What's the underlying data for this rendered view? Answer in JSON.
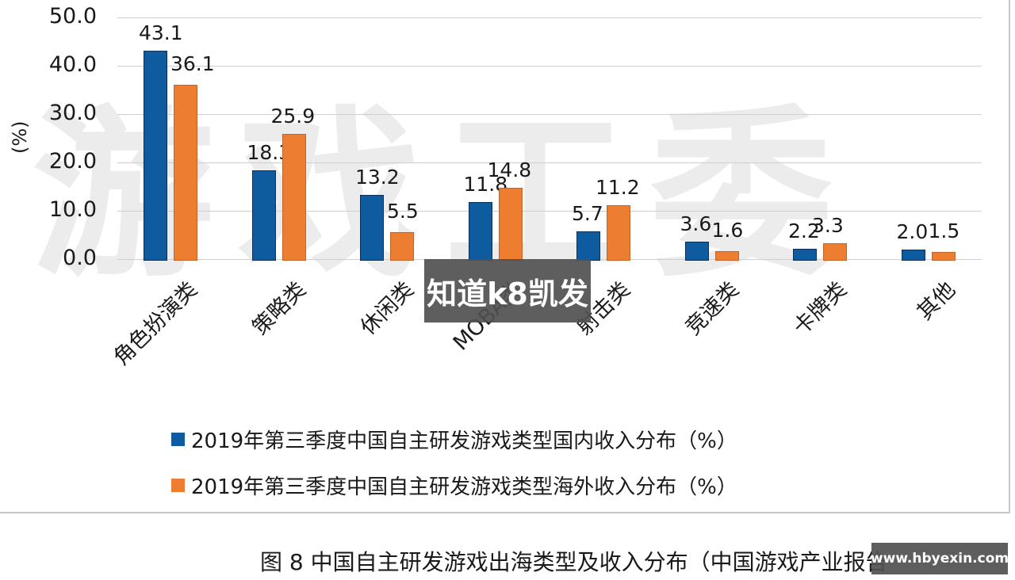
{
  "chart_data": {
    "type": "bar",
    "title": "",
    "xlabel": "",
    "ylabel": "(%)",
    "ylim": [
      0,
      50
    ],
    "yticks": [
      "0.0",
      "10.0",
      "20.0",
      "30.0",
      "40.0",
      "50.0"
    ],
    "grid": true,
    "legend_position": "bottom",
    "categories": [
      "角色扮演类",
      "策略类",
      "休闲类",
      "MOBA类",
      "射击类",
      "竞速类",
      "卡牌类",
      "其他"
    ],
    "series": [
      {
        "name": "2019年第三季度中国自主研发游戏类型国内收入分布（%）",
        "color": "#0f5ba0",
        "values": [
          43.1,
          18.3,
          13.2,
          11.8,
          5.7,
          3.6,
          2.2,
          2.0
        ],
        "labels": [
          "43.1",
          "18.3",
          "13.2",
          "11.8",
          "5.7",
          "3.6",
          "2.2",
          "2.0"
        ]
      },
      {
        "name": "2019年第三季度中国自主研发游戏类型海外收入分布（%）",
        "color": "#ed7d31",
        "values": [
          36.1,
          25.9,
          5.5,
          14.8,
          11.2,
          1.6,
          3.3,
          1.5
        ],
        "labels": [
          "36.1",
          "25.9",
          "5.5",
          "14.8",
          "11.2",
          "1.6",
          "3.3",
          "1.5"
        ]
      }
    ]
  },
  "watermark": "游戏工委",
  "caption": "图 8 中国自主研发游戏出海类型及收入分布（中国游戏产业报告",
  "overlays": {
    "center_banner": "知道k8凯发",
    "corner_url": "www.hbyexin.com"
  }
}
